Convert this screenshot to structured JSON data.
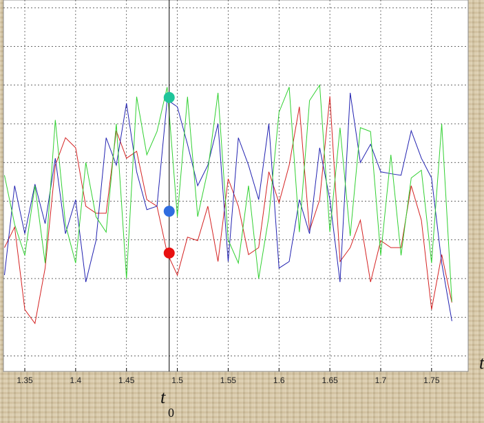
{
  "chart_data": {
    "type": "line",
    "x": [
      1.33,
      1.34,
      1.35,
      1.36,
      1.37,
      1.38,
      1.39,
      1.4,
      1.41,
      1.42,
      1.43,
      1.44,
      1.45,
      1.46,
      1.47,
      1.48,
      1.49,
      1.5,
      1.51,
      1.52,
      1.53,
      1.54,
      1.55,
      1.56,
      1.57,
      1.58,
      1.59,
      1.6,
      1.61,
      1.62,
      1.63,
      1.64,
      1.65,
      1.66,
      1.67,
      1.68,
      1.69,
      1.7,
      1.71,
      1.72,
      1.73,
      1.74,
      1.75,
      1.76,
      1.77
    ],
    "series": [
      {
        "color": "#d42020",
        "values": [
          2.8,
          3.33,
          1.2,
          0.84,
          2.27,
          4.93,
          5.64,
          5.38,
          3.87,
          3.69,
          3.69,
          5.82,
          5.11,
          5.29,
          4.04,
          3.87,
          2.66,
          2.09,
          3.07,
          2.98,
          3.87,
          2.44,
          4.58,
          3.87,
          2.62,
          2.8,
          4.76,
          3.96,
          4.93,
          6.44,
          3.24,
          4.04,
          6.71,
          2.44,
          2.8,
          3.51,
          1.91,
          2.98,
          2.8,
          2.8,
          4.4,
          3.51,
          1.2,
          2.62,
          1.38
        ]
      },
      {
        "color": "#2020b0",
        "values": [
          2.09,
          4.4,
          3.16,
          4.44,
          3.42,
          5.11,
          3.16,
          4.04,
          1.91,
          2.98,
          5.64,
          4.93,
          6.53,
          4.76,
          3.78,
          3.87,
          6.62,
          6.44,
          5.47,
          4.4,
          4.93,
          6.0,
          2.44,
          5.64,
          4.93,
          4.04,
          6.0,
          2.27,
          2.44,
          4.04,
          3.16,
          5.38,
          4.04,
          1.91,
          6.8,
          5.0,
          5.47,
          4.76,
          4.71,
          4.67,
          5.82,
          5.11,
          4.6,
          2.4,
          0.9
        ]
      },
      {
        "color": "#30d030",
        "values": [
          4.67,
          3.4,
          2.6,
          4.4,
          2.4,
          6.1,
          3.4,
          2.4,
          5.0,
          3.6,
          3.2,
          6.0,
          2.0,
          6.7,
          5.2,
          5.8,
          6.95,
          3.6,
          6.7,
          3.6,
          4.8,
          6.8,
          3.0,
          2.4,
          4.4,
          2.0,
          3.6,
          6.3,
          6.95,
          3.2,
          6.6,
          7.0,
          3.2,
          5.9,
          3.1,
          5.9,
          5.8,
          2.6,
          5.2,
          2.6,
          4.6,
          4.8,
          2.4,
          6.0,
          1.4
        ]
      }
    ],
    "markers": [
      {
        "x": 1.492,
        "value": 6.68,
        "color": "#1fc59a"
      },
      {
        "x": 1.492,
        "value": 3.74,
        "color": "#2f6de0"
      },
      {
        "x": 1.492,
        "value": 2.66,
        "color": "#e81010"
      }
    ],
    "cursor_x": 1.492,
    "xlim": [
      1.329,
      1.786
    ],
    "xticks": [
      1.35,
      1.4,
      1.45,
      1.5,
      1.55,
      1.6,
      1.65,
      1.7,
      1.75
    ],
    "ylim": [
      -0.4,
      9.2
    ],
    "yticks": [
      0,
      1,
      2,
      3,
      4,
      5,
      6,
      7,
      8,
      9
    ],
    "grid": true,
    "x_label": "t",
    "cursor_label": "t",
    "cursor_label_subscript": "0"
  }
}
